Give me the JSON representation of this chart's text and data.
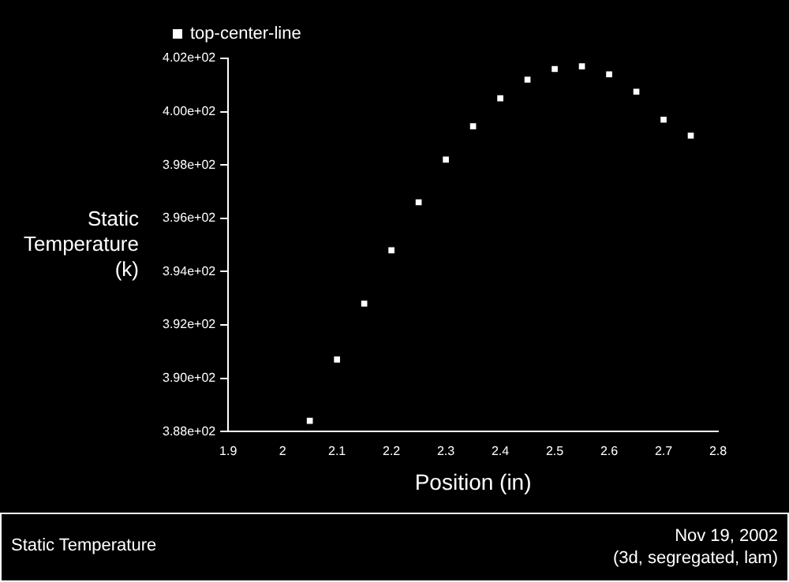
{
  "chart_data": {
    "type": "scatter",
    "xlabel": "Position (in)",
    "ylabel": "Static Temperature (k)",
    "x": [
      2.05,
      2.1,
      2.15,
      2.2,
      2.25,
      2.3,
      2.35,
      2.4,
      2.45,
      2.5,
      2.55,
      2.6,
      2.65,
      2.7,
      2.75
    ],
    "series": [
      {
        "name": "top-center-line",
        "color": "#ffffff",
        "values": [
          388.4,
          390.7,
          392.8,
          394.8,
          396.6,
          398.2,
          399.45,
          400.5,
          401.2,
          401.6,
          401.7,
          401.4,
          400.75,
          399.7,
          399.1
        ]
      }
    ],
    "xlim": [
      1.9,
      2.8
    ],
    "xticks": [
      1.9,
      2,
      2.1,
      2.2,
      2.3,
      2.4,
      2.5,
      2.6,
      2.7,
      2.8
    ],
    "ylim": [
      388,
      402
    ],
    "yticks": [
      {
        "value": 388,
        "label": "3.88e+02"
      },
      {
        "value": 390,
        "label": "3.90e+02"
      },
      {
        "value": 392,
        "label": "3.92e+02"
      },
      {
        "value": 394,
        "label": "3.94e+02"
      },
      {
        "value": 396,
        "label": "3.96e+02"
      },
      {
        "value": 398,
        "label": "3.98e+02"
      },
      {
        "value": 400,
        "label": "4.00e+02"
      },
      {
        "value": 402,
        "label": "4.02e+02"
      }
    ],
    "grid": false,
    "legend": "top left",
    "marker": "square",
    "annotations": [
      "Static Temperature",
      "Nov 19, 2002",
      "(3d, segregated, lam)"
    ]
  }
}
